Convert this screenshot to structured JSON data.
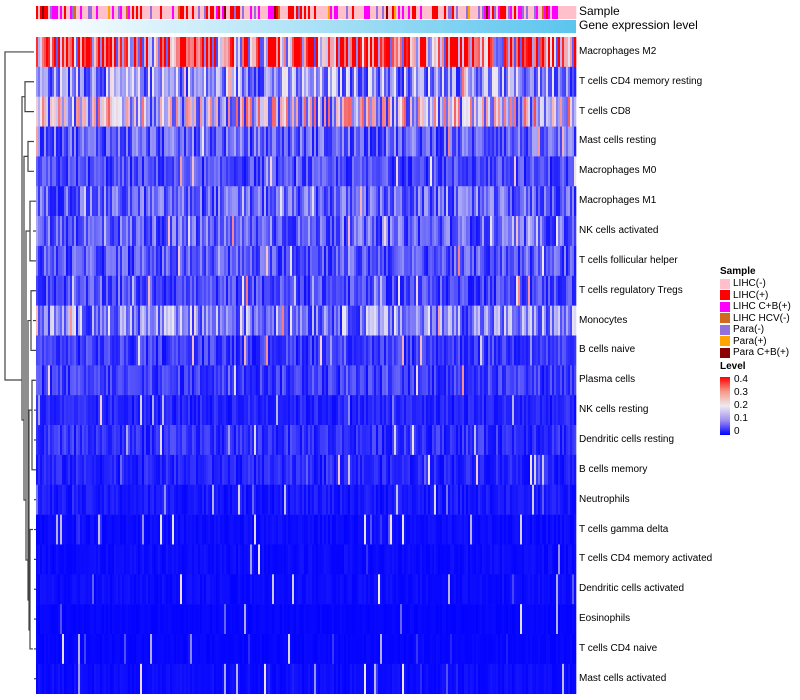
{
  "chart_data": {
    "type": "heatmap",
    "title": "",
    "annotations": [
      {
        "name": "Sample",
        "label": "Sample"
      },
      {
        "name": "Gene expression level",
        "label": "Gene expression level",
        "colors": [
          "#ffffff",
          "#5bc5ee"
        ]
      }
    ],
    "rows": [
      {
        "label": "Macrophages M2",
        "mean_level": 0.3
      },
      {
        "label": "T cells CD4 memory resting",
        "mean_level": 0.12
      },
      {
        "label": "T cells CD8",
        "mean_level": 0.18
      },
      {
        "label": "Mast cells resting",
        "mean_level": 0.08
      },
      {
        "label": "Macrophages M0",
        "mean_level": 0.06
      },
      {
        "label": "Macrophages M1",
        "mean_level": 0.08
      },
      {
        "label": "NK cells activated",
        "mean_level": 0.08
      },
      {
        "label": "T cells follicular helper",
        "mean_level": 0.07
      },
      {
        "label": "T cells regulatory  Tregs",
        "mean_level": 0.06
      },
      {
        "label": "Monocytes",
        "mean_level": 0.11
      },
      {
        "label": "B cells naive",
        "mean_level": 0.05
      },
      {
        "label": "Plasma cells",
        "mean_level": 0.05
      },
      {
        "label": "NK cells resting",
        "mean_level": 0.03
      },
      {
        "label": "Dendritic cells resting",
        "mean_level": 0.04
      },
      {
        "label": "B cells memory",
        "mean_level": 0.03
      },
      {
        "label": "Neutrophils",
        "mean_level": 0.02
      },
      {
        "label": "T cells gamma delta",
        "mean_level": 0.01
      },
      {
        "label": "T cells CD4 memory activated",
        "mean_level": 0.01
      },
      {
        "label": "Dendritic cells activated",
        "mean_level": 0.01
      },
      {
        "label": "Eosinophils",
        "mean_level": 0.005
      },
      {
        "label": "T cells CD4 naive",
        "mean_level": 0.005
      },
      {
        "label": "Mast cells activated",
        "mean_level": 0.01
      }
    ],
    "legend": {
      "sample_title": "Sample",
      "samples": [
        {
          "label": "LIHC(-)",
          "color": "#ffc0cb"
        },
        {
          "label": "LIHC(+)",
          "color": "#ff0000"
        },
        {
          "label": "LIHC C+B(+)",
          "color": "#ff00ff"
        },
        {
          "label": "LIHC HCV(-)",
          "color": "#d2691e"
        },
        {
          "label": "Para(-)",
          "color": "#9370db"
        },
        {
          "label": "Para(+)",
          "color": "#ffa500"
        },
        {
          "label": "Para C+B(+)",
          "color": "#8b0000"
        }
      ],
      "level_title": "Level",
      "level_ticks": [
        "0.4",
        "0.3",
        "0.2",
        "0.1",
        "0"
      ],
      "level_range": [
        0,
        0.4
      ],
      "level_colors": [
        "#0000ff",
        "#eeeaf2",
        "#ff0000"
      ]
    },
    "legend_placement": "right",
    "n_columns": 270
  }
}
